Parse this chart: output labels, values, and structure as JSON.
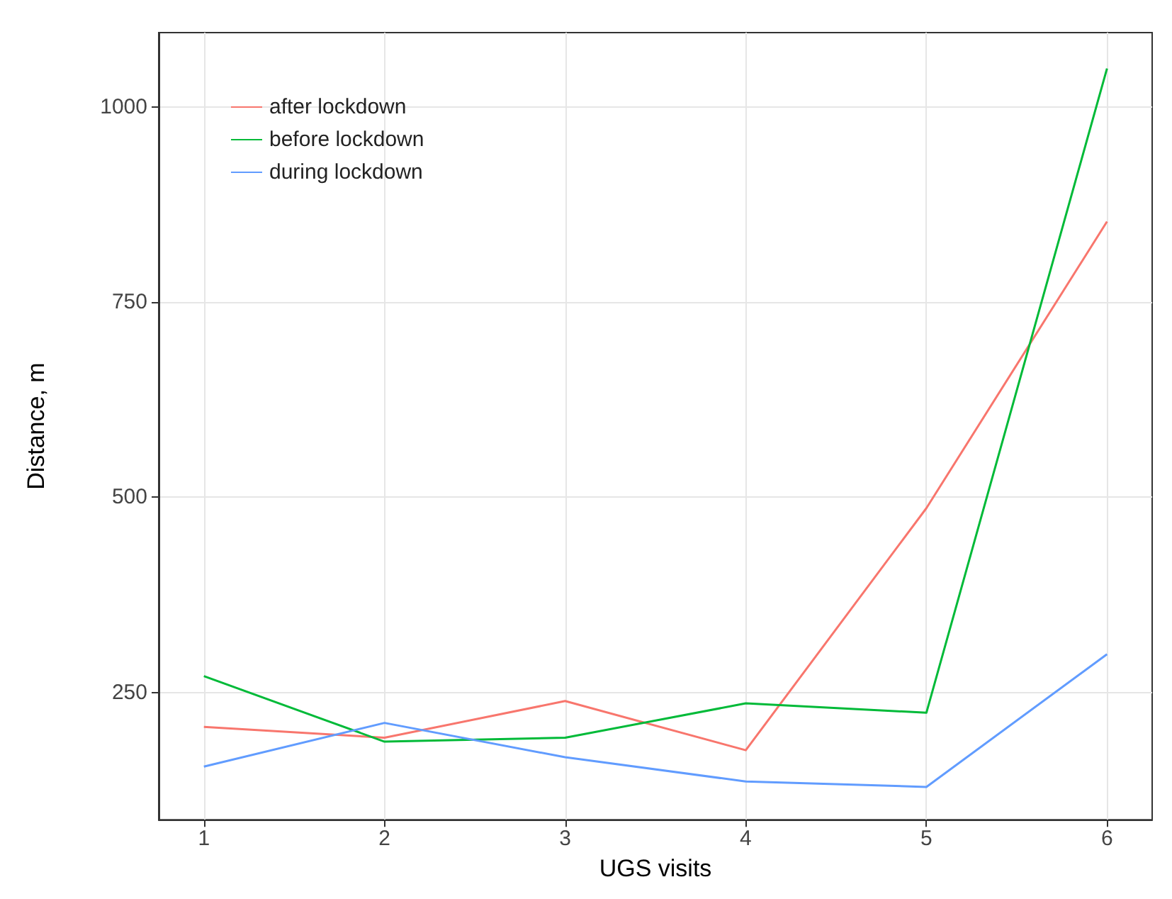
{
  "chart_data": {
    "type": "line",
    "xlabel": "UGS visits",
    "ylabel": "Distance, m",
    "x": [
      1,
      2,
      3,
      4,
      5,
      6
    ],
    "series": [
      {
        "name": "after lockdown",
        "color": "#f8766d",
        "values": [
          206,
          192,
          239,
          176,
          486,
          853
        ]
      },
      {
        "name": "before lockdown",
        "color": "#00ba38",
        "values": [
          271,
          187,
          192,
          236,
          224,
          1049
        ]
      },
      {
        "name": "during lockdown",
        "color": "#619cff",
        "values": [
          155,
          211,
          167,
          136,
          129,
          299
        ]
      }
    ],
    "xlim": [
      0.75,
      6.25
    ],
    "xticks": [
      1,
      2,
      3,
      4,
      5,
      6
    ],
    "ylim": [
      87,
      1095
    ],
    "yticks": [
      250,
      500,
      750,
      1000
    ],
    "grid": true,
    "legend": "top left",
    "marker": "none",
    "line_style": "solid"
  }
}
